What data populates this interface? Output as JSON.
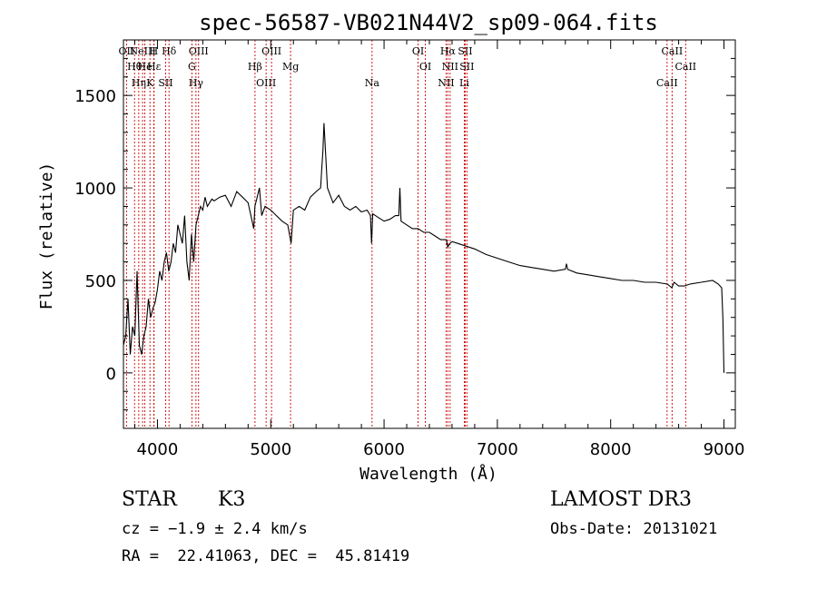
{
  "chart_data": {
    "type": "line",
    "title": "spec-56587-VB021N44V2_sp09-064.fits",
    "xlabel": "Wavelength (Å)",
    "ylabel": "Flux (relative)",
    "xlim": [
      3700,
      9100
    ],
    "ylim": [
      -300,
      1800
    ],
    "xticks": [
      4000,
      5000,
      6000,
      7000,
      8000,
      9000
    ],
    "yticks": [
      0,
      500,
      1000,
      1500
    ],
    "grid": false,
    "line_color": "#000000",
    "marker_color": "#cc0000",
    "series": [
      {
        "name": "flux",
        "x": [
          3700,
          3720,
          3740,
          3760,
          3780,
          3800,
          3820,
          3840,
          3860,
          3880,
          3900,
          3920,
          3940,
          3960,
          3980,
          4000,
          4020,
          4040,
          4060,
          4080,
          4100,
          4120,
          4140,
          4160,
          4180,
          4200,
          4220,
          4240,
          4260,
          4280,
          4300,
          4320,
          4340,
          4360,
          4380,
          4400,
          4420,
          4440,
          4460,
          4480,
          4500,
          4550,
          4600,
          4650,
          4700,
          4750,
          4800,
          4850,
          4860,
          4880,
          4900,
          4920,
          4950,
          5000,
          5050,
          5100,
          5150,
          5180,
          5200,
          5250,
          5300,
          5350,
          5400,
          5440,
          5450,
          5460,
          5470,
          5500,
          5550,
          5600,
          5650,
          5700,
          5750,
          5800,
          5850,
          5880,
          5890,
          5900,
          5950,
          6000,
          6050,
          6100,
          6130,
          6140,
          6150,
          6200,
          6250,
          6300,
          6350,
          6400,
          6450,
          6500,
          6550,
          6562,
          6580,
          6600,
          6650,
          6700,
          6750,
          6800,
          6900,
          7000,
          7100,
          7200,
          7300,
          7400,
          7500,
          7600,
          7610,
          7620,
          7700,
          7800,
          7900,
          8000,
          8100,
          8200,
          8300,
          8400,
          8500,
          8540,
          8560,
          8600,
          8650,
          8700,
          8800,
          8900,
          8950,
          8980,
          8990,
          9000
        ],
        "values": [
          150,
          200,
          400,
          100,
          250,
          200,
          550,
          150,
          100,
          200,
          250,
          400,
          300,
          350,
          380,
          450,
          550,
          500,
          600,
          650,
          550,
          600,
          700,
          650,
          800,
          750,
          700,
          850,
          600,
          500,
          750,
          600,
          800,
          850,
          900,
          880,
          950,
          900,
          920,
          940,
          930,
          950,
          960,
          900,
          980,
          950,
          920,
          780,
          900,
          950,
          1000,
          850,
          900,
          880,
          850,
          820,
          800,
          700,
          880,
          900,
          880,
          950,
          980,
          1000,
          1100,
          1200,
          1350,
          1000,
          920,
          960,
          900,
          880,
          900,
          870,
          880,
          850,
          700,
          860,
          840,
          820,
          830,
          850,
          850,
          1000,
          820,
          800,
          780,
          780,
          760,
          760,
          740,
          720,
          720,
          680,
          700,
          710,
          700,
          690,
          680,
          670,
          640,
          620,
          600,
          580,
          570,
          560,
          550,
          560,
          590,
          560,
          540,
          530,
          520,
          510,
          500,
          500,
          490,
          490,
          480,
          460,
          490,
          470,
          470,
          480,
          490,
          500,
          480,
          460,
          300,
          0
        ]
      }
    ],
    "lines": [
      {
        "wave": 3727,
        "label": "OII"
      },
      {
        "wave": 3798,
        "label": "Hθ"
      },
      {
        "wave": 3835,
        "label": "Hη"
      },
      {
        "wave": 3869,
        "label": "NeIII"
      },
      {
        "wave": 3889,
        "label": "He"
      },
      {
        "wave": 3934,
        "label": "K"
      },
      {
        "wave": 3968,
        "label": "H"
      },
      {
        "wave": 3970,
        "label": "Hε"
      },
      {
        "wave": 4072,
        "label": "SII"
      },
      {
        "wave": 4102,
        "label": "Hδ"
      },
      {
        "wave": 4304,
        "label": "G"
      },
      {
        "wave": 4340,
        "label": "Hγ"
      },
      {
        "wave": 4363,
        "label": "OIII"
      },
      {
        "wave": 4861,
        "label": "Hβ"
      },
      {
        "wave": 4959,
        "label": "OIII"
      },
      {
        "wave": 5007,
        "label": "OIII"
      },
      {
        "wave": 5175,
        "label": "Mg"
      },
      {
        "wave": 5894,
        "label": "Na"
      },
      {
        "wave": 6300,
        "label": "OI"
      },
      {
        "wave": 6364,
        "label": "OI"
      },
      {
        "wave": 6548,
        "label": "NII"
      },
      {
        "wave": 6563,
        "label": "Hα"
      },
      {
        "wave": 6583,
        "label": "NII"
      },
      {
        "wave": 6708,
        "label": "Li"
      },
      {
        "wave": 6716,
        "label": "SII"
      },
      {
        "wave": 6731,
        "label": "SII"
      },
      {
        "wave": 8498,
        "label": "CaII"
      },
      {
        "wave": 8542,
        "label": "CaII"
      },
      {
        "wave": 8662,
        "label": "CaII"
      }
    ]
  },
  "info": {
    "object_class": "STAR",
    "subclass": "K3",
    "cz": "cz = −1.9 ± 2.4 km/s",
    "coords": "RA =  22.41063, DEC =  45.81419",
    "survey": "LAMOST DR3",
    "obs_date": "Obs-Date: 20131021"
  }
}
